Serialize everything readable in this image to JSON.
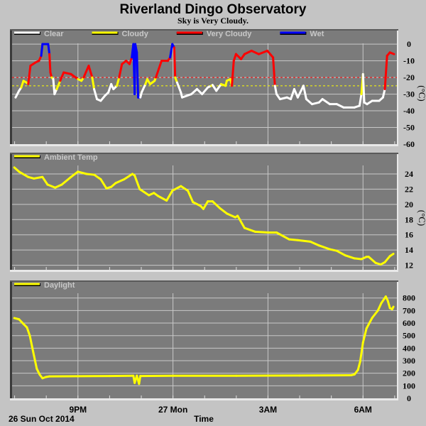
{
  "header": {
    "title": "Riverland Dingo Observatory",
    "subtitle": "Sky is Very Cloudy."
  },
  "x_axis": {
    "label": "Time",
    "date_label": "26 Sun Oct 2014",
    "unit": "hours (24 = midnight)",
    "xlim": [
      18.92,
      31.07
    ],
    "ticks": [
      {
        "value": 21,
        "label": "9PM"
      },
      {
        "value": 24,
        "label": "27 Mon"
      },
      {
        "value": 27,
        "label": "3AM"
      },
      {
        "value": 30,
        "label": "6AM"
      }
    ]
  },
  "chart_data": [
    {
      "type": "line",
      "id": "sky",
      "ylabel": "(°C)",
      "ylim": [
        -60,
        9
      ],
      "yticks": [
        0,
        -10,
        -20,
        -30,
        -40,
        -50,
        -60
      ],
      "legend": [
        {
          "label": "Clear",
          "color": "#ffffff"
        },
        {
          "label": "Cloudy",
          "color": "#ffff00"
        },
        {
          "label": "Very Cloudy",
          "color": "#ff0000"
        },
        {
          "label": "Wet",
          "color": "#0000ff"
        }
      ],
      "thresholds": [
        {
          "value": -20,
          "color": "#ff0000"
        },
        {
          "value": -25,
          "color": "#ffff00"
        }
      ],
      "wet_ranges": [
        [
          19.82,
          20.1
        ],
        [
          22.68,
          22.95
        ],
        [
          23.89,
          24.04
        ]
      ],
      "points": [
        [
          19.03,
          -32
        ],
        [
          19.14,
          -28
        ],
        [
          19.21,
          -26
        ],
        [
          19.28,
          -22
        ],
        [
          19.37,
          -23
        ],
        [
          19.43,
          -24
        ],
        [
          19.5,
          -13
        ],
        [
          19.66,
          -11
        ],
        [
          19.77,
          -10
        ],
        [
          19.84,
          -7
        ],
        [
          19.88,
          0
        ],
        [
          20.06,
          0
        ],
        [
          20.1,
          -6
        ],
        [
          20.13,
          -17
        ],
        [
          20.17,
          -20
        ],
        [
          20.22,
          -21
        ],
        [
          20.26,
          -30
        ],
        [
          20.33,
          -27
        ],
        [
          20.44,
          -22
        ],
        [
          20.55,
          -17
        ],
        [
          20.78,
          -18
        ],
        [
          21.0,
          -21
        ],
        [
          21.11,
          -22
        ],
        [
          21.18,
          -20
        ],
        [
          21.34,
          -13
        ],
        [
          21.45,
          -20
        ],
        [
          21.51,
          -27
        ],
        [
          21.6,
          -33
        ],
        [
          21.72,
          -34
        ],
        [
          21.85,
          -31
        ],
        [
          21.96,
          -29
        ],
        [
          22.05,
          -24
        ],
        [
          22.12,
          -27
        ],
        [
          22.23,
          -25
        ],
        [
          22.3,
          -20
        ],
        [
          22.39,
          -12
        ],
        [
          22.52,
          -10
        ],
        [
          22.63,
          -12
        ],
        [
          22.7,
          -8
        ],
        [
          22.75,
          0
        ],
        [
          22.79,
          -30
        ],
        [
          22.81,
          0
        ],
        [
          22.86,
          -5
        ],
        [
          22.9,
          -32
        ],
        [
          22.97,
          -32
        ],
        [
          23.01,
          -29
        ],
        [
          23.13,
          -24
        ],
        [
          23.19,
          -21
        ],
        [
          23.28,
          -24
        ],
        [
          23.35,
          -23
        ],
        [
          23.42,
          -22
        ],
        [
          23.46,
          -20
        ],
        [
          23.64,
          -10
        ],
        [
          23.84,
          -10
        ],
        [
          23.91,
          -8
        ],
        [
          23.98,
          0
        ],
        [
          24.04,
          -2
        ],
        [
          24.07,
          -20
        ],
        [
          24.13,
          -23
        ],
        [
          24.25,
          -29
        ],
        [
          24.29,
          -32
        ],
        [
          24.43,
          -31
        ],
        [
          24.58,
          -30
        ],
        [
          24.76,
          -27
        ],
        [
          24.92,
          -30
        ],
        [
          25.1,
          -26
        ],
        [
          25.21,
          -25
        ],
        [
          25.25,
          -24.5
        ],
        [
          25.37,
          -28
        ],
        [
          25.52,
          -24
        ],
        [
          25.66,
          -25
        ],
        [
          25.7,
          -22
        ],
        [
          25.81,
          -21
        ],
        [
          25.86,
          -25
        ],
        [
          25.92,
          -10
        ],
        [
          25.99,
          -6
        ],
        [
          26.15,
          -9
        ],
        [
          26.26,
          -6
        ],
        [
          26.48,
          -4
        ],
        [
          26.71,
          -6
        ],
        [
          26.98,
          -4
        ],
        [
          27.16,
          -8
        ],
        [
          27.22,
          -25
        ],
        [
          27.27,
          -30
        ],
        [
          27.38,
          -33
        ],
        [
          27.6,
          -32
        ],
        [
          27.72,
          -33
        ],
        [
          27.83,
          -27
        ],
        [
          27.94,
          -32
        ],
        [
          28.12,
          -25
        ],
        [
          28.21,
          -33
        ],
        [
          28.39,
          -36
        ],
        [
          28.61,
          -35
        ],
        [
          28.72,
          -33
        ],
        [
          28.95,
          -36
        ],
        [
          29.17,
          -36
        ],
        [
          29.39,
          -38
        ],
        [
          29.73,
          -38
        ],
        [
          29.89,
          -37
        ],
        [
          29.95,
          -30
        ],
        [
          30.0,
          -18
        ],
        [
          30.04,
          -35
        ],
        [
          30.13,
          -36
        ],
        [
          30.29,
          -34
        ],
        [
          30.51,
          -34
        ],
        [
          30.63,
          -32
        ],
        [
          30.69,
          -27
        ],
        [
          30.76,
          -7
        ],
        [
          30.85,
          -5
        ],
        [
          30.98,
          -6
        ]
      ]
    },
    {
      "type": "line",
      "id": "ambient",
      "ylabel": "(°C)",
      "ylim": [
        11.4,
        26.8
      ],
      "yticks": [
        24,
        22,
        20,
        18,
        16,
        14,
        12
      ],
      "legend": [
        {
          "label": "Ambient Temp",
          "color": "#ffff00"
        }
      ],
      "points": [
        [
          18.99,
          24.85
        ],
        [
          19.14,
          24.3
        ],
        [
          19.43,
          23.6
        ],
        [
          19.61,
          23.4
        ],
        [
          19.88,
          23.6
        ],
        [
          20.04,
          22.6
        ],
        [
          20.28,
          22.2
        ],
        [
          20.49,
          22.6
        ],
        [
          20.78,
          23.6
        ],
        [
          21.0,
          24.3
        ],
        [
          21.27,
          24.0
        ],
        [
          21.51,
          23.9
        ],
        [
          21.72,
          23.3
        ],
        [
          21.9,
          22.1
        ],
        [
          22.05,
          22.3
        ],
        [
          22.19,
          22.8
        ],
        [
          22.46,
          23.3
        ],
        [
          22.72,
          24.0
        ],
        [
          22.79,
          23.8
        ],
        [
          22.95,
          22.0
        ],
        [
          23.24,
          21.2
        ],
        [
          23.4,
          21.5
        ],
        [
          23.53,
          21.1
        ],
        [
          23.8,
          20.5
        ],
        [
          23.98,
          21.8
        ],
        [
          24.25,
          22.4
        ],
        [
          24.47,
          21.8
        ],
        [
          24.63,
          20.3
        ],
        [
          24.87,
          19.8
        ],
        [
          24.96,
          19.4
        ],
        [
          25.1,
          20.4
        ],
        [
          25.25,
          20.4
        ],
        [
          25.48,
          19.5
        ],
        [
          25.7,
          18.8
        ],
        [
          25.97,
          18.3
        ],
        [
          26.04,
          18.5
        ],
        [
          26.26,
          16.9
        ],
        [
          26.6,
          16.4
        ],
        [
          27.0,
          16.3
        ],
        [
          27.27,
          16.3
        ],
        [
          27.49,
          15.8
        ],
        [
          27.67,
          15.4
        ],
        [
          27.94,
          15.3
        ],
        [
          28.34,
          15.1
        ],
        [
          28.61,
          14.6
        ],
        [
          28.95,
          14.1
        ],
        [
          29.17,
          13.9
        ],
        [
          29.44,
          13.3
        ],
        [
          29.73,
          12.9
        ],
        [
          29.95,
          12.8
        ],
        [
          30.11,
          13.1
        ],
        [
          30.18,
          13.1
        ],
        [
          30.4,
          12.3
        ],
        [
          30.56,
          12.1
        ],
        [
          30.69,
          12.4
        ],
        [
          30.85,
          13.2
        ],
        [
          30.96,
          13.5
        ]
      ]
    },
    {
      "type": "line",
      "id": "daylight",
      "ylabel": "",
      "ylim": [
        0,
        940
      ],
      "yticks": [
        800,
        700,
        600,
        500,
        400,
        300,
        200,
        100,
        0
      ],
      "legend": [
        {
          "label": "Daylight",
          "color": "#ffff00"
        }
      ],
      "points": [
        [
          18.99,
          640
        ],
        [
          19.14,
          630
        ],
        [
          19.28,
          593
        ],
        [
          19.39,
          565
        ],
        [
          19.48,
          500
        ],
        [
          19.59,
          366
        ],
        [
          19.7,
          236
        ],
        [
          19.79,
          190
        ],
        [
          19.88,
          160
        ],
        [
          19.99,
          170
        ],
        [
          20.1,
          175
        ],
        [
          21.0,
          176
        ],
        [
          22.0,
          178
        ],
        [
          22.75,
          180
        ],
        [
          22.79,
          123
        ],
        [
          22.86,
          180
        ],
        [
          22.93,
          115
        ],
        [
          22.97,
          178
        ],
        [
          24.0,
          180
        ],
        [
          26.0,
          180
        ],
        [
          28.0,
          182
        ],
        [
          29.62,
          184
        ],
        [
          29.73,
          190
        ],
        [
          29.84,
          226
        ],
        [
          29.91,
          292
        ],
        [
          30.0,
          445
        ],
        [
          30.11,
          557
        ],
        [
          30.29,
          642
        ],
        [
          30.47,
          700
        ],
        [
          30.58,
          760
        ],
        [
          30.72,
          812
        ],
        [
          30.78,
          780
        ],
        [
          30.85,
          720
        ],
        [
          30.92,
          710
        ],
        [
          30.96,
          730
        ]
      ]
    }
  ]
}
